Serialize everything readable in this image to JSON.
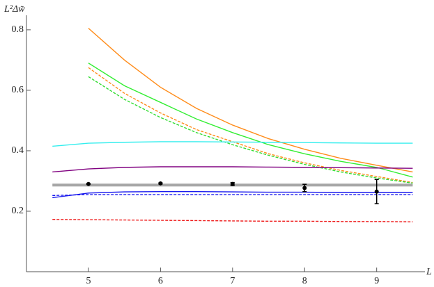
{
  "chart_data": {
    "type": "line",
    "ylabel": "L²Δw̃",
    "xlabel": "L",
    "xlim": [
      4.14,
      9.67
    ],
    "ylim": [
      0,
      0.848
    ],
    "xticks": [
      5,
      6,
      7,
      8,
      9
    ],
    "yticks": [
      0.2,
      0.4,
      0.6,
      0.8
    ],
    "x": [
      4.5,
      5,
      5.5,
      6,
      6.5,
      7,
      7.5,
      8,
      8.5,
      9,
      9.5
    ],
    "series": [
      {
        "color": "#aaaaaa",
        "style": "band",
        "values": [
          0.287,
          0.287,
          0.287,
          0.287,
          0.287,
          0.287,
          0.287,
          0.287,
          0.287,
          0.287,
          0.287
        ]
      },
      {
        "color": "#ff8c1a",
        "style": "solid",
        "values": [
          null,
          0.805,
          0.7,
          0.61,
          0.54,
          0.485,
          0.44,
          0.405,
          0.375,
          0.352,
          0.33
        ]
      },
      {
        "color": "#33ee33",
        "style": "solid",
        "values": [
          null,
          0.69,
          0.615,
          0.56,
          0.505,
          0.46,
          0.42,
          0.39,
          0.365,
          0.345,
          0.313
        ]
      },
      {
        "color": "#ff8c1a",
        "style": "dashed",
        "values": [
          null,
          0.675,
          0.59,
          0.525,
          0.47,
          0.43,
          0.39,
          0.36,
          0.335,
          0.315,
          0.295
        ]
      },
      {
        "color": "#33dd33",
        "style": "dashed",
        "values": [
          null,
          0.645,
          0.57,
          0.51,
          0.46,
          0.42,
          0.385,
          0.355,
          0.33,
          0.31,
          0.293
        ]
      },
      {
        "color": "#33eeee",
        "style": "solid",
        "values": [
          0.415,
          0.425,
          0.428,
          0.43,
          0.43,
          0.429,
          0.428,
          0.427,
          0.426,
          0.425,
          0.425
        ]
      },
      {
        "color": "#800080",
        "style": "solid",
        "values": [
          0.33,
          0.34,
          0.345,
          0.347,
          0.347,
          0.347,
          0.346,
          0.345,
          0.344,
          0.343,
          0.342
        ]
      },
      {
        "color": "#1a1aee",
        "style": "solid",
        "values": [
          0.245,
          0.26,
          0.264,
          0.265,
          0.265,
          0.264,
          0.263,
          0.263,
          0.262,
          0.262,
          0.262
        ]
      },
      {
        "color": "#1a1aee",
        "style": "dashed",
        "values": [
          0.252,
          0.255,
          0.255,
          0.255,
          0.255,
          0.255,
          0.255,
          0.255,
          0.255,
          0.255,
          0.255
        ]
      },
      {
        "color": "#ee1a1a",
        "style": "dashed",
        "values": [
          0.173,
          0.172,
          0.171,
          0.17,
          0.169,
          0.168,
          0.167,
          0.167,
          0.166,
          0.166,
          0.165
        ]
      }
    ],
    "points": {
      "color": "#000000",
      "x": [
        5,
        6,
        7,
        8,
        9
      ],
      "values": [
        0.29,
        0.292,
        0.29,
        0.277,
        0.265
      ],
      "errors": [
        0.002,
        0.002,
        0.005,
        0.012,
        0.04
      ]
    }
  }
}
